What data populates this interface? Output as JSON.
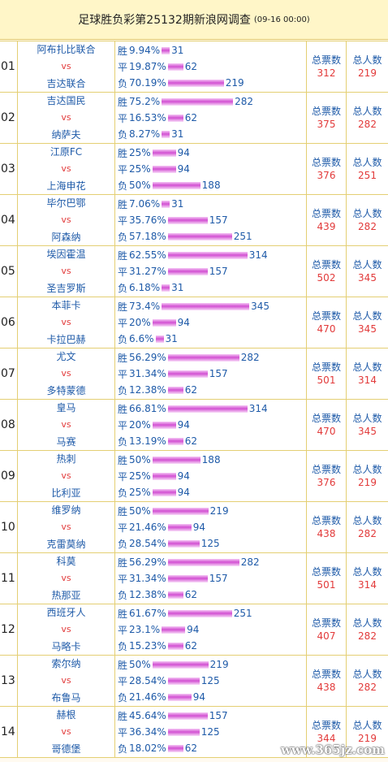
{
  "header": {
    "title": "足球胜负彩第25132期新浪网调查",
    "date": "(09-16 00:00)"
  },
  "labels": {
    "vs": "vs",
    "win": "胜",
    "draw": "平",
    "lose": "负",
    "total_votes": "总票数",
    "total_people": "总人数"
  },
  "watermark": "www.365jz.com",
  "colors": {
    "header_bg": "#fff6c8",
    "border": "#e4cf73",
    "team_text": "#1e5aa8",
    "accent_red": "#e23a3a",
    "bar": "#d250d2"
  },
  "matches": [
    {
      "index": "01",
      "home": "阿布扎比联合",
      "away": "吉达联合",
      "win_pct": "9.94%",
      "win_votes": 31,
      "draw_pct": "19.87%",
      "draw_votes": 62,
      "lose_pct": "70.19%",
      "lose_votes": 219,
      "total_votes": 312,
      "total_people": 219
    },
    {
      "index": "02",
      "home": "吉达国民",
      "away": "纳萨夫",
      "win_pct": "75.2%",
      "win_votes": 282,
      "draw_pct": "16.53%",
      "draw_votes": 62,
      "lose_pct": "8.27%",
      "lose_votes": 31,
      "total_votes": 375,
      "total_people": 282
    },
    {
      "index": "03",
      "home": "江原FC",
      "away": "上海申花",
      "win_pct": "25%",
      "win_votes": 94,
      "draw_pct": "25%",
      "draw_votes": 94,
      "lose_pct": "50%",
      "lose_votes": 188,
      "total_votes": 376,
      "total_people": 251
    },
    {
      "index": "04",
      "home": "毕尔巴鄂",
      "away": "阿森纳",
      "win_pct": "7.06%",
      "win_votes": 31,
      "draw_pct": "35.76%",
      "draw_votes": 157,
      "lose_pct": "57.18%",
      "lose_votes": 251,
      "total_votes": 439,
      "total_people": 282
    },
    {
      "index": "05",
      "home": "埃因霍温",
      "away": "圣吉罗斯",
      "win_pct": "62.55%",
      "win_votes": 314,
      "draw_pct": "31.27%",
      "draw_votes": 157,
      "lose_pct": "6.18%",
      "lose_votes": 31,
      "total_votes": 502,
      "total_people": 345
    },
    {
      "index": "06",
      "home": "本菲卡",
      "away": "卡拉巴赫",
      "win_pct": "73.4%",
      "win_votes": 345,
      "draw_pct": "20%",
      "draw_votes": 94,
      "lose_pct": "6.6%",
      "lose_votes": 31,
      "total_votes": 470,
      "total_people": 345
    },
    {
      "index": "07",
      "home": "尤文",
      "away": "多特蒙德",
      "win_pct": "56.29%",
      "win_votes": 282,
      "draw_pct": "31.34%",
      "draw_votes": 157,
      "lose_pct": "12.38%",
      "lose_votes": 62,
      "total_votes": 501,
      "total_people": 314
    },
    {
      "index": "08",
      "home": "皇马",
      "away": "马赛",
      "win_pct": "66.81%",
      "win_votes": 314,
      "draw_pct": "20%",
      "draw_votes": 94,
      "lose_pct": "13.19%",
      "lose_votes": 62,
      "total_votes": 470,
      "total_people": 345
    },
    {
      "index": "09",
      "home": "热刺",
      "away": "比利亚",
      "win_pct": "50%",
      "win_votes": 188,
      "draw_pct": "25%",
      "draw_votes": 94,
      "lose_pct": "25%",
      "lose_votes": 94,
      "total_votes": 376,
      "total_people": 219
    },
    {
      "index": "10",
      "home": "维罗纳",
      "away": "克雷莫纳",
      "win_pct": "50%",
      "win_votes": 219,
      "draw_pct": "21.46%",
      "draw_votes": 94,
      "lose_pct": "28.54%",
      "lose_votes": 125,
      "total_votes": 438,
      "total_people": 282
    },
    {
      "index": "11",
      "home": "科莫",
      "away": "热那亚",
      "win_pct": "56.29%",
      "win_votes": 282,
      "draw_pct": "31.34%",
      "draw_votes": 157,
      "lose_pct": "12.38%",
      "lose_votes": 62,
      "total_votes": 501,
      "total_people": 314
    },
    {
      "index": "12",
      "home": "西班牙人",
      "away": "马略卡",
      "win_pct": "61.67%",
      "win_votes": 251,
      "draw_pct": "23.1%",
      "draw_votes": 94,
      "lose_pct": "15.23%",
      "lose_votes": 62,
      "total_votes": 407,
      "total_people": 282
    },
    {
      "index": "13",
      "home": "索尔纳",
      "away": "布鲁马",
      "win_pct": "50%",
      "win_votes": 219,
      "draw_pct": "28.54%",
      "draw_votes": 125,
      "lose_pct": "21.46%",
      "lose_votes": 94,
      "total_votes": 438,
      "total_people": 282
    },
    {
      "index": "14",
      "home": "赫根",
      "away": "哥德堡",
      "win_pct": "45.64%",
      "win_votes": 157,
      "draw_pct": "36.34%",
      "draw_votes": 125,
      "lose_pct": "18.02%",
      "lose_votes": 62,
      "total_votes": 344,
      "total_people": 219
    }
  ]
}
